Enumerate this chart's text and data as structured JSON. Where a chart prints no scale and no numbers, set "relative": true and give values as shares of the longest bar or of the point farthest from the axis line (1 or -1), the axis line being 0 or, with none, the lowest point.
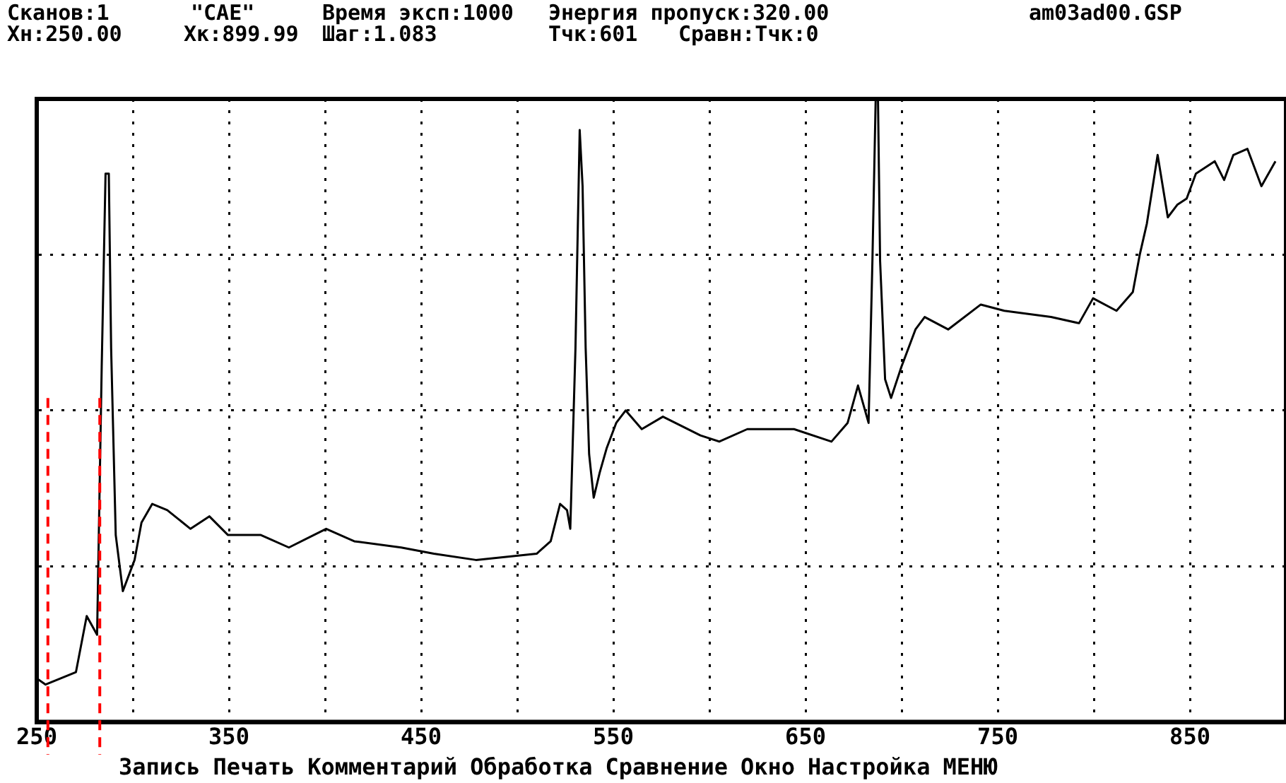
{
  "chart_data": {
    "type": "line",
    "relative": true,
    "annotations": [
      "Сканов:1",
      "\"CAE\"",
      "Время эксп:1000",
      "Энергия пропуск:320.00",
      "am03ad00.GSP",
      "Xн:250.00",
      "Xк:899.99",
      "Шаг:1.083",
      "Тчк:601",
      "Сравн:Тчк:0",
      "Запись",
      "Печать",
      "Комментарий",
      "Обработка",
      "Сравнение",
      "Окно",
      "Настройка",
      "МЕНЮ"
    ],
    "xlim": [
      250,
      899.99
    ],
    "xticks": [
      250,
      {
        "value": 300,
        "label": null
      },
      350,
      {
        "value": 400,
        "label": null
      },
      450,
      {
        "value": 500,
        "label": null
      },
      550,
      {
        "value": 600,
        "label": null
      },
      650,
      {
        "value": 700,
        "label": null
      },
      750,
      {
        "value": 800,
        "label": null
      },
      850
    ],
    "grid": true,
    "marker": "none",
    "line_style": "solid",
    "ref_lines": [
      {
        "axis": "x",
        "value": 255.8,
        "color": "#ff0000",
        "line_style": "dashed"
      },
      {
        "axis": "x",
        "value": 282.8,
        "color": "#ff0000",
        "line_style": "dashed"
      }
    ],
    "series": [
      {
        "color": "#000000",
        "x": [
          250,
          254.6,
          270.4,
          276,
          281.4,
          283.8,
          285.8,
          287.5,
          288.7,
          291.1,
          294.8,
          300.9,
          304.5,
          310.1,
          317.9,
          330,
          339.8,
          349.5,
          366.6,
          381.2,
          400.6,
          415.2,
          439.6,
          456.6,
          478.5,
          510.1,
          517.4,
          522.3,
          525.9,
          527.6,
          530.3,
          532.5,
          534,
          535.6,
          537.4,
          539.8,
          542.9,
          546.6,
          551.5,
          556.4,
          564.8,
          575.8,
          595.3,
          605.1,
          619.7,
          644,
          663.5,
          671.9,
          677.3,
          682.8,
          684.8,
          686.5,
          687.7,
          688.8,
          691.4,
          694.5,
          699.9,
          707.2,
          712,
          724.2,
          741.2,
          753.4,
          777.7,
          792.3,
          799.6,
          811.8,
          820.3,
          823.9,
          827.6,
          833.2,
          838.5,
          843.4,
          848.3,
          853.1,
          862.9,
          867.8,
          872.6,
          879.9,
          887.2,
          894.5
        ],
        "values": [
          0.07,
          0.06,
          0.08,
          0.17,
          0.14,
          0.57,
          0.88,
          0.88,
          0.6,
          0.3,
          0.21,
          0.26,
          0.32,
          0.35,
          0.34,
          0.31,
          0.33,
          0.3,
          0.3,
          0.28,
          0.31,
          0.29,
          0.28,
          0.27,
          0.26,
          0.27,
          0.29,
          0.35,
          0.34,
          0.31,
          0.6,
          0.95,
          0.86,
          0.6,
          0.43,
          0.36,
          0.4,
          0.44,
          0.48,
          0.5,
          0.47,
          0.49,
          0.46,
          0.45,
          0.47,
          0.47,
          0.45,
          0.48,
          0.54,
          0.48,
          0.74,
          1.0,
          1.0,
          0.74,
          0.55,
          0.52,
          0.57,
          0.63,
          0.65,
          0.63,
          0.67,
          0.66,
          0.65,
          0.64,
          0.68,
          0.66,
          0.69,
          0.75,
          0.8,
          0.91,
          0.81,
          0.83,
          0.84,
          0.88,
          0.9,
          0.87,
          0.91,
          0.92,
          0.86,
          0.9
        ]
      }
    ]
  }
}
